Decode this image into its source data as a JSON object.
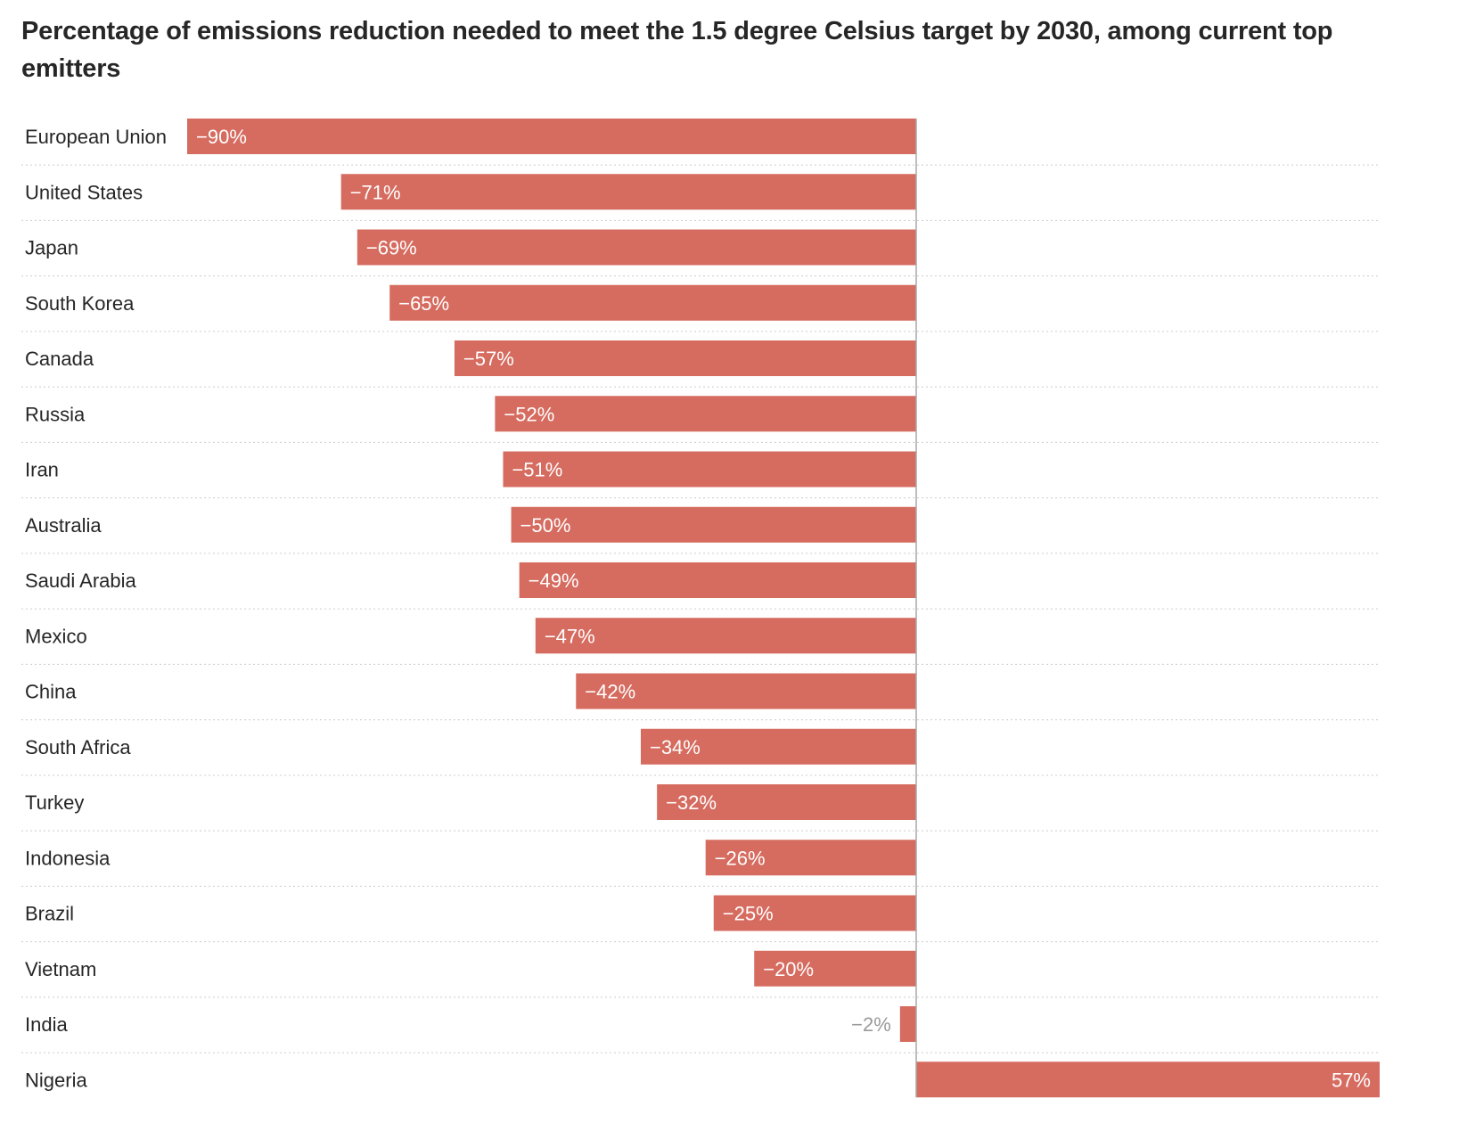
{
  "chart_data": {
    "type": "bar",
    "orientation": "horizontal",
    "title": "Percentage of emissions reduction needed to meet the 1.5 degree Celsius target by 2030, among current top emitters",
    "categories": [
      "European Union",
      "United States",
      "Japan",
      "South Korea",
      "Canada",
      "Russia",
      "Iran",
      "Australia",
      "Saudi Arabia",
      "Mexico",
      "China",
      "South Africa",
      "Turkey",
      "Indonesia",
      "Brazil",
      "Vietnam",
      "India",
      "Nigeria"
    ],
    "values": [
      -90,
      -71,
      -69,
      -65,
      -57,
      -52,
      -51,
      -50,
      -49,
      -47,
      -42,
      -34,
      -32,
      -26,
      -25,
      -20,
      -2,
      57
    ],
    "data_labels": [
      "−90%",
      "−71%",
      "−69%",
      "−65%",
      "−57%",
      "−52%",
      "−51%",
      "−50%",
      "−49%",
      "−47%",
      "−42%",
      "−34%",
      "−32%",
      "−26%",
      "−25%",
      "−20%",
      "−2%",
      "57%"
    ],
    "xlim": [
      -90,
      57
    ],
    "grid": false,
    "bar_color": "#d66b5f",
    "label_color_inside": "#ffffff",
    "label_color_outside": "#9a9a9a",
    "axis_color": "#a8a8a8",
    "separator_color": "#cccccc"
  }
}
